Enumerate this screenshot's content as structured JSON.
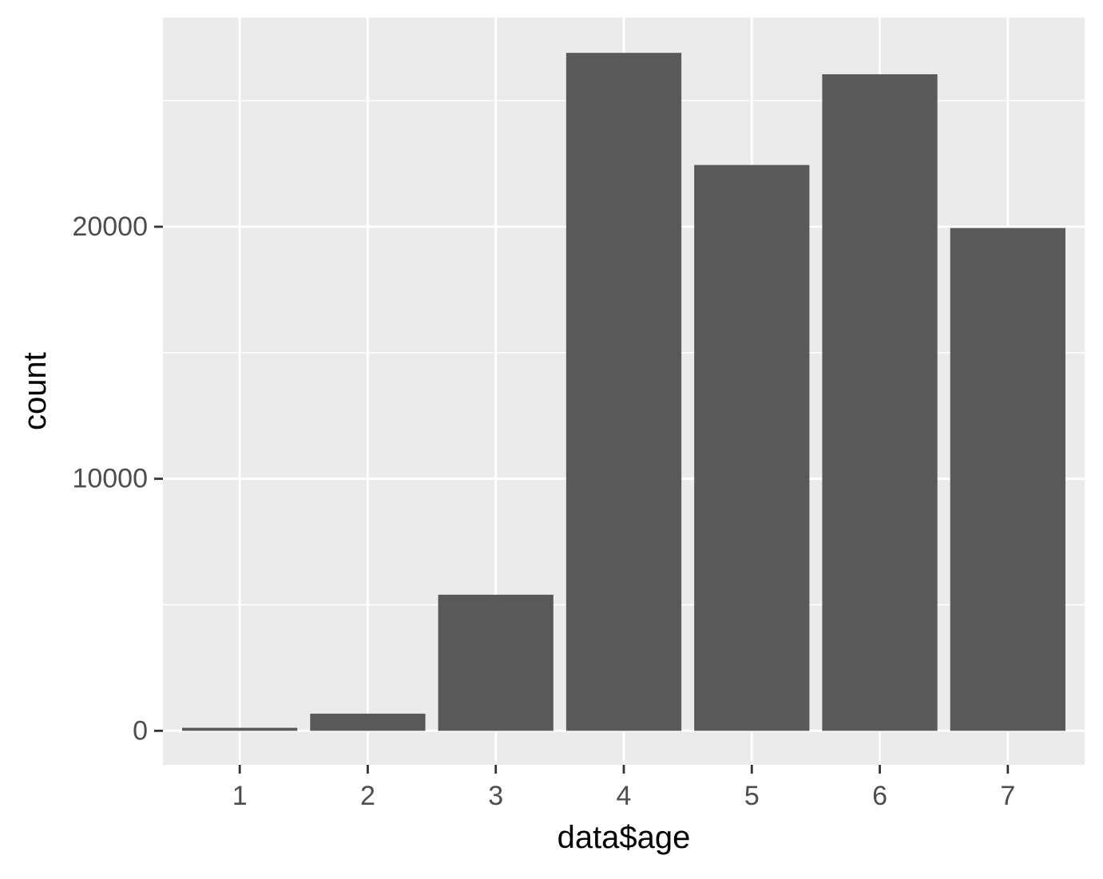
{
  "chart_data": {
    "type": "bar",
    "title": "",
    "xlabel": "data$age",
    "ylabel": "count",
    "categories": [
      "1",
      "2",
      "3",
      "4",
      "5",
      "6",
      "7"
    ],
    "values": [
      120,
      680,
      5400,
      26900,
      22450,
      26050,
      19950
    ],
    "y_ticks": [
      0,
      10000,
      20000
    ],
    "y_tick_labels": [
      "0",
      "10000",
      "20000"
    ],
    "ylim": [
      -1350,
      28300
    ],
    "grid": true,
    "legend": "none",
    "colors": {
      "panel_background": "#EBEBEB",
      "grid": "#FFFFFF",
      "bar_fill": "#595959",
      "tick_mark": "#333333",
      "tick_label": "#4D4D4D",
      "axis_title": "#000000"
    }
  }
}
